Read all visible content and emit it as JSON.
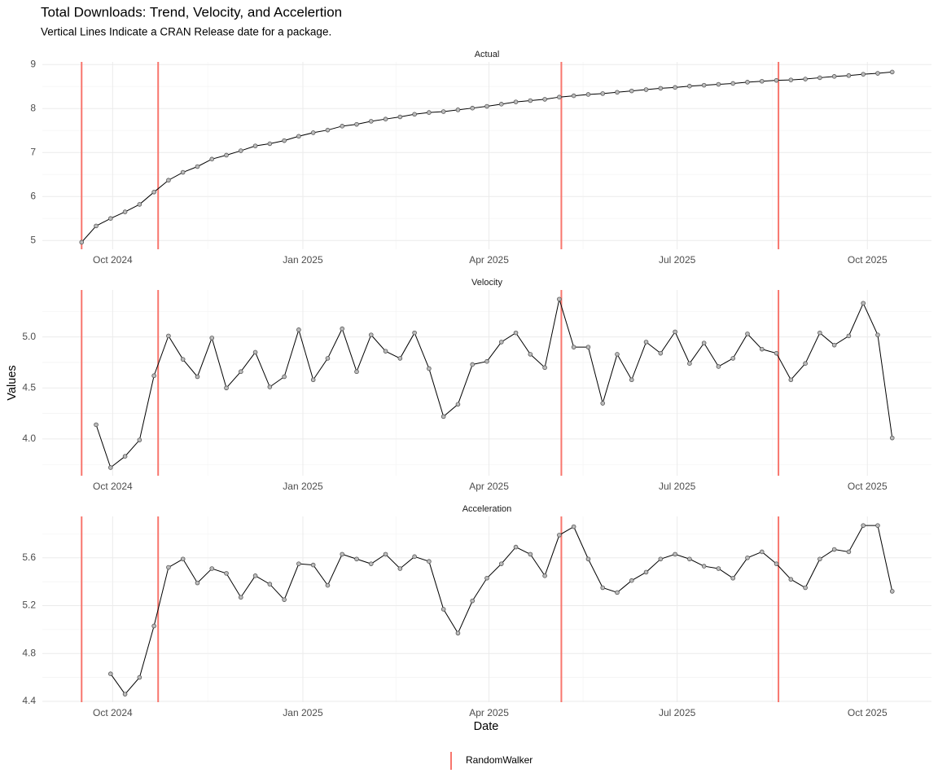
{
  "title": "Total Downloads: Trend, Velocity, and Accelertion",
  "subtitle": "Vertical Lines Indicate a CRAN Release date for a package.",
  "xlabel": "Date",
  "ylabel": "Values",
  "releases": {
    "name": "RandomWalker",
    "color": "#f8766d",
    "x": [
      "2024-09-16",
      "2024-10-23",
      "2025-05-06",
      "2025-08-19"
    ]
  },
  "chart_data": [
    {
      "type": "line",
      "title": "Actual",
      "color": "#000000",
      "grid": true,
      "x": [
        "2024-09-16",
        "2024-09-23",
        "2024-09-30",
        "2024-10-07",
        "2024-10-14",
        "2024-10-21",
        "2024-10-28",
        "2024-11-04",
        "2024-11-11",
        "2024-11-18",
        "2024-11-25",
        "2024-12-02",
        "2024-12-09",
        "2024-12-16",
        "2024-12-23",
        "2024-12-30",
        "2025-01-06",
        "2025-01-13",
        "2025-01-20",
        "2025-01-27",
        "2025-02-03",
        "2025-02-10",
        "2025-02-17",
        "2025-02-24",
        "2025-03-03",
        "2025-03-10",
        "2025-03-17",
        "2025-03-24",
        "2025-03-31",
        "2025-04-07",
        "2025-04-14",
        "2025-04-21",
        "2025-04-28",
        "2025-05-05",
        "2025-05-12",
        "2025-05-19",
        "2025-05-26",
        "2025-06-02",
        "2025-06-09",
        "2025-06-16",
        "2025-06-23",
        "2025-06-30",
        "2025-07-07",
        "2025-07-14",
        "2025-07-21",
        "2025-07-28",
        "2025-08-04",
        "2025-08-11",
        "2025-08-18",
        "2025-08-25",
        "2025-09-01",
        "2025-09-08",
        "2025-09-15",
        "2025-09-22",
        "2025-09-29",
        "2025-10-06",
        "2025-10-13"
      ],
      "values": [
        4.96,
        5.33,
        5.5,
        5.65,
        5.82,
        6.1,
        6.37,
        6.55,
        6.68,
        6.85,
        6.94,
        7.04,
        7.15,
        7.2,
        7.27,
        7.37,
        7.45,
        7.51,
        7.6,
        7.64,
        7.71,
        7.76,
        7.81,
        7.87,
        7.91,
        7.93,
        7.97,
        8.01,
        8.05,
        8.1,
        8.15,
        8.18,
        8.21,
        8.26,
        8.29,
        8.32,
        8.34,
        8.37,
        8.4,
        8.43,
        8.46,
        8.48,
        8.51,
        8.53,
        8.55,
        8.57,
        8.6,
        8.62,
        8.64,
        8.65,
        8.67,
        8.7,
        8.73,
        8.75,
        8.78,
        8.8,
        8.83
      ],
      "xlim": [
        "2024-08-28",
        "2025-11-01"
      ],
      "xticks": [
        {
          "value": "2024-10-01",
          "label": "Oct 2024"
        },
        {
          "value": "2025-01-01",
          "label": "Jan 2025"
        },
        {
          "value": "2025-04-01",
          "label": "Apr 2025"
        },
        {
          "value": "2025-07-01",
          "label": "Jul 2025"
        },
        {
          "value": "2025-10-01",
          "label": "Oct 2025"
        }
      ],
      "ylim": [
        4.8,
        9.06
      ],
      "yticks": [
        5,
        6,
        7,
        8,
        9
      ]
    },
    {
      "type": "line",
      "title": "Velocity",
      "color": "#000000",
      "grid": true,
      "x": [
        "2024-09-16",
        "2024-09-23",
        "2024-09-30",
        "2024-10-07",
        "2024-10-14",
        "2024-10-21",
        "2024-10-28",
        "2024-11-04",
        "2024-11-11",
        "2024-11-18",
        "2024-11-25",
        "2024-12-02",
        "2024-12-09",
        "2024-12-16",
        "2024-12-23",
        "2024-12-30",
        "2025-01-06",
        "2025-01-13",
        "2025-01-20",
        "2025-01-27",
        "2025-02-03",
        "2025-02-10",
        "2025-02-17",
        "2025-02-24",
        "2025-03-03",
        "2025-03-10",
        "2025-03-17",
        "2025-03-24",
        "2025-03-31",
        "2025-04-07",
        "2025-04-14",
        "2025-04-21",
        "2025-04-28",
        "2025-05-05",
        "2025-05-12",
        "2025-05-19",
        "2025-05-26",
        "2025-06-02",
        "2025-06-09",
        "2025-06-16",
        "2025-06-23",
        "2025-06-30",
        "2025-07-07",
        "2025-07-14",
        "2025-07-21",
        "2025-07-28",
        "2025-08-04",
        "2025-08-11",
        "2025-08-18",
        "2025-08-25",
        "2025-09-01",
        "2025-09-08",
        "2025-09-15",
        "2025-09-22",
        "2025-09-29",
        "2025-10-06",
        "2025-10-13"
      ],
      "values": [
        null,
        4.14,
        3.72,
        3.83,
        3.99,
        4.62,
        5.01,
        4.78,
        4.61,
        4.99,
        4.5,
        4.66,
        4.85,
        4.51,
        4.61,
        5.07,
        4.58,
        4.79,
        5.08,
        4.66,
        5.02,
        4.86,
        4.79,
        5.04,
        4.69,
        4.22,
        4.34,
        4.73,
        4.76,
        4.95,
        5.04,
        4.83,
        4.7,
        5.37,
        4.9,
        4.9,
        4.35,
        4.83,
        4.58,
        4.95,
        4.84,
        5.05,
        4.74,
        4.94,
        4.71,
        4.79,
        5.03,
        4.88,
        4.84,
        4.58,
        4.74,
        5.04,
        4.92,
        5.01,
        5.33,
        5.02,
        4.01
      ],
      "xlim": [
        "2024-08-28",
        "2025-11-01"
      ],
      "xticks": [
        {
          "value": "2024-10-01",
          "label": "Oct 2024"
        },
        {
          "value": "2025-01-01",
          "label": "Jan 2025"
        },
        {
          "value": "2025-04-01",
          "label": "Apr 2025"
        },
        {
          "value": "2025-07-01",
          "label": "Jul 2025"
        },
        {
          "value": "2025-10-01",
          "label": "Oct 2025"
        }
      ],
      "ylim": [
        3.64,
        5.46
      ],
      "yticks": [
        {
          "value": 4,
          "label": "4.0"
        },
        4.5,
        {
          "value": 5,
          "label": "5.0"
        }
      ]
    },
    {
      "type": "line",
      "title": "Acceleration",
      "color": "#000000",
      "grid": true,
      "x": [
        "2024-09-16",
        "2024-09-23",
        "2024-09-30",
        "2024-10-07",
        "2024-10-14",
        "2024-10-21",
        "2024-10-28",
        "2024-11-04",
        "2024-11-11",
        "2024-11-18",
        "2024-11-25",
        "2024-12-02",
        "2024-12-09",
        "2024-12-16",
        "2024-12-23",
        "2024-12-30",
        "2025-01-06",
        "2025-01-13",
        "2025-01-20",
        "2025-01-27",
        "2025-02-03",
        "2025-02-10",
        "2025-02-17",
        "2025-02-24",
        "2025-03-03",
        "2025-03-10",
        "2025-03-17",
        "2025-03-24",
        "2025-03-31",
        "2025-04-07",
        "2025-04-14",
        "2025-04-21",
        "2025-04-28",
        "2025-05-05",
        "2025-05-12",
        "2025-05-19",
        "2025-05-26",
        "2025-06-02",
        "2025-06-09",
        "2025-06-16",
        "2025-06-23",
        "2025-06-30",
        "2025-07-07",
        "2025-07-14",
        "2025-07-21",
        "2025-07-28",
        "2025-08-04",
        "2025-08-11",
        "2025-08-18",
        "2025-08-25",
        "2025-09-01",
        "2025-09-08",
        "2025-09-15",
        "2025-09-22",
        "2025-09-29",
        "2025-10-06",
        "2025-10-13"
      ],
      "values": [
        null,
        null,
        4.63,
        4.46,
        4.6,
        5.03,
        5.52,
        5.59,
        5.39,
        5.51,
        5.47,
        5.27,
        5.45,
        5.38,
        5.25,
        5.55,
        5.54,
        5.37,
        5.63,
        5.59,
        5.55,
        5.63,
        5.51,
        5.61,
        5.57,
        5.17,
        4.97,
        5.24,
        5.43,
        5.55,
        5.69,
        5.63,
        5.45,
        5.79,
        5.86,
        5.59,
        5.35,
        5.31,
        5.41,
        5.48,
        5.59,
        5.63,
        5.59,
        5.53,
        5.51,
        5.43,
        5.6,
        5.65,
        5.55,
        5.42,
        5.35,
        5.59,
        5.67,
        5.65,
        5.87,
        5.87,
        5.32
      ],
      "xlim": [
        "2024-08-28",
        "2025-11-01"
      ],
      "xticks": [
        {
          "value": "2024-10-01",
          "label": "Oct 2024"
        },
        {
          "value": "2025-01-01",
          "label": "Jan 2025"
        },
        {
          "value": "2025-04-01",
          "label": "Apr 2025"
        },
        {
          "value": "2025-07-01",
          "label": "Jul 2025"
        },
        {
          "value": "2025-10-01",
          "label": "Oct 2025"
        }
      ],
      "ylim": [
        4.393,
        5.946
      ],
      "yticks": [
        4.4,
        4.8,
        5.2,
        5.6
      ]
    }
  ]
}
